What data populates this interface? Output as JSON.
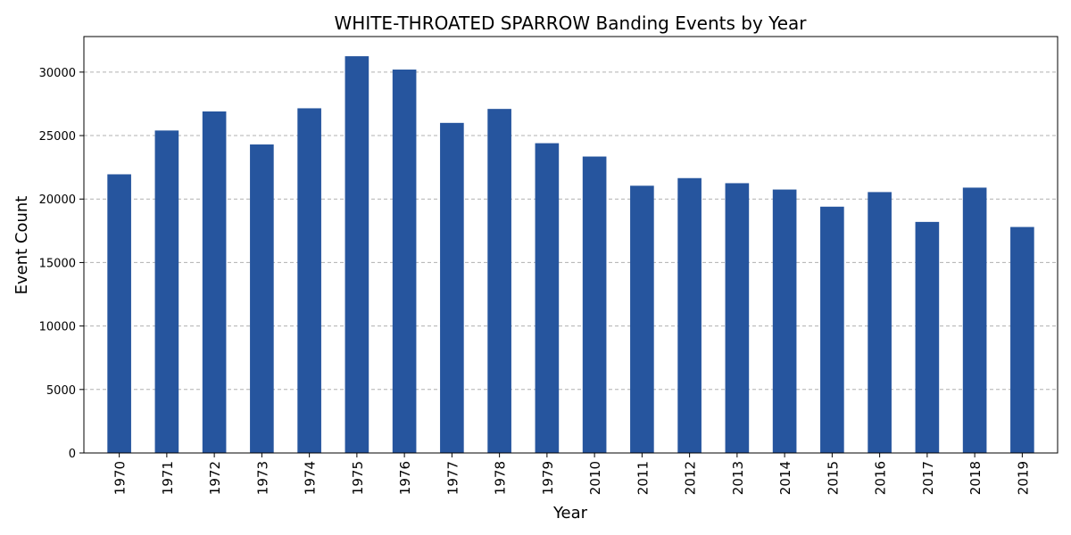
{
  "chart_data": {
    "type": "bar",
    "title": "WHITE-THROATED SPARROW Banding Events by Year",
    "xlabel": "Year",
    "ylabel": "Event Count",
    "categories": [
      "1970",
      "1971",
      "1972",
      "1973",
      "1974",
      "1975",
      "1976",
      "1977",
      "1978",
      "1979",
      "2010",
      "2011",
      "2012",
      "2013",
      "2014",
      "2015",
      "2016",
      "2017",
      "2018",
      "2019"
    ],
    "values": [
      21950,
      25400,
      26900,
      24300,
      27150,
      31250,
      30200,
      26000,
      27100,
      24400,
      23350,
      21050,
      21650,
      21250,
      20750,
      19400,
      20550,
      18200,
      20900,
      17800
    ],
    "ylim": [
      0,
      32800
    ],
    "yticks": [
      0,
      5000,
      10000,
      15000,
      20000,
      25000,
      30000
    ],
    "ytick_labels": [
      "0",
      "5000",
      "10000",
      "15000",
      "20000",
      "25000",
      "30000"
    ],
    "grid": "y-dashed",
    "legend": "none",
    "colors": {
      "bar": "#26559e",
      "grid": "#b0b0b0",
      "axis": "#000000"
    }
  }
}
